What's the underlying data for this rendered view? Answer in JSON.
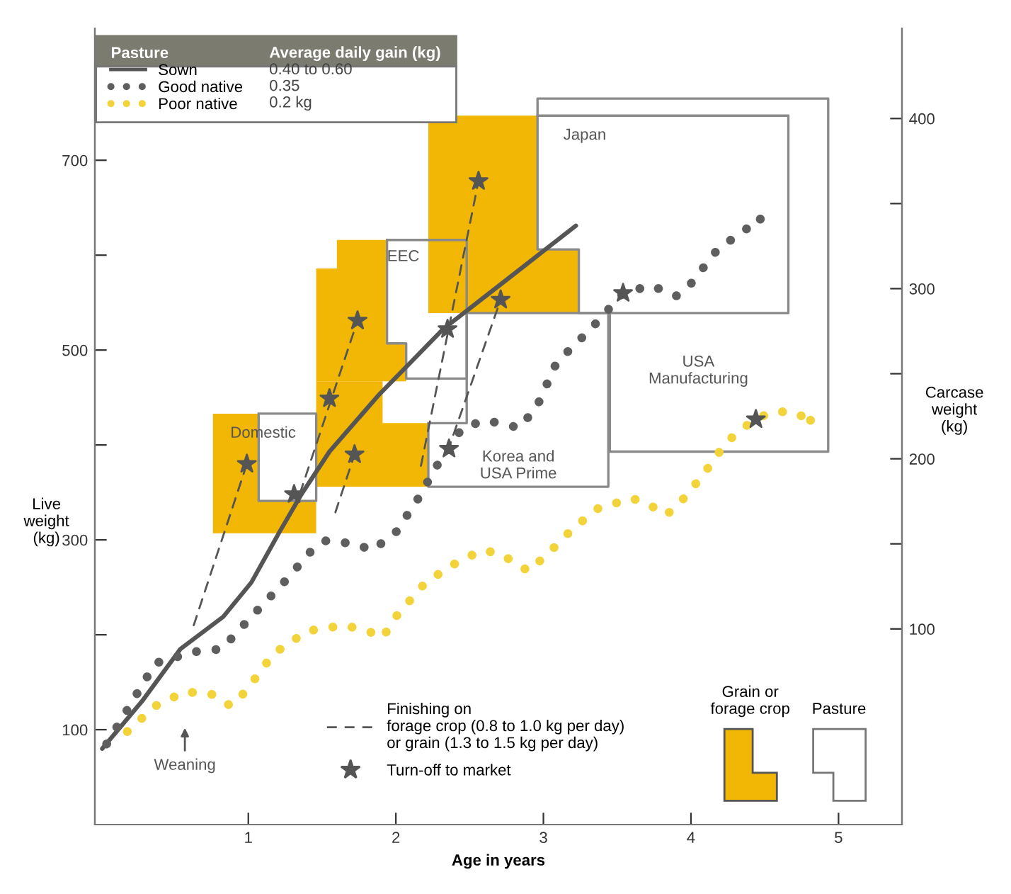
{
  "chart_data": {
    "type": "line",
    "xlabel": "Age in years",
    "ylabel": "Live\nweight\n(kg)",
    "y2label": "Carcase\nweight\n(kg)",
    "legend_title": "Pasture",
    "xlim": [
      -0.04,
      5.43
    ],
    "xticks": [
      1,
      2,
      3,
      4,
      5
    ],
    "ylim": [
      0,
      839
    ],
    "yticks": [
      100,
      {
        "value": 200,
        "label": null
      },
      300,
      {
        "value": 400,
        "label": null
      },
      500,
      {
        "value": 600,
        "label": null
      },
      700
    ],
    "y2lim": [
      -15,
      453
    ],
    "y2ticks": [
      100,
      {
        "value": 150,
        "label": null
      },
      200,
      {
        "value": 250,
        "label": null
      },
      300,
      {
        "value": 350,
        "label": null
      },
      400
    ],
    "grid": false,
    "legend": "top left",
    "annotations": [
      "Average daily gain (kg)",
      "0.40 to 0.60",
      "0.35",
      "0.2 kg",
      "Domestic",
      "EEC",
      "Japan",
      "Korea and\nUSA Prime",
      "USA\nManufacturing",
      "Weaning",
      "Grain or\nforage crop",
      "Pasture"
    ],
    "series": [
      {
        "name": "Sown",
        "color": "#555555",
        "line_style": "solid",
        "x": [
          0.01,
          0.28,
          0.54,
          0.83,
          1.02,
          1.21,
          1.36,
          1.55,
          1.88,
          2.32,
          2.75,
          3.22
        ],
        "values": [
          80,
          130,
          185,
          219,
          255,
          308,
          348,
          393,
          452,
          522,
          574,
          631
        ]
      },
      {
        "name": "Good native",
        "color": "#5e5e5e",
        "line_style": "dotted",
        "x": [
          0.04,
          0.37,
          0.63,
          0.82,
          1.02,
          1.24,
          1.43,
          1.52,
          1.72,
          1.84,
          2.0,
          2.17,
          2.26,
          2.45,
          2.61,
          2.84,
          2.96,
          3.09,
          3.32,
          3.54,
          3.73,
          3.9,
          3.99,
          4.18,
          4.47
        ],
        "values": [
          85,
          170,
          182,
          185,
          219,
          255,
          289,
          299,
          296,
          289,
          308,
          348,
          374,
          418,
          426,
          418,
          442,
          487,
          522,
          560,
          568,
          557,
          568,
          606,
          638
        ]
      },
      {
        "name": "Poor native",
        "color": "#f3d33a",
        "line_style": "dotted",
        "x": [
          0.18,
          0.37,
          0.57,
          0.76,
          0.88,
          0.98,
          1.17,
          1.4,
          1.65,
          1.81,
          1.91,
          2.0,
          2.2,
          2.39,
          2.58,
          2.7,
          2.9,
          3.06,
          3.2,
          3.37,
          3.6,
          3.73,
          3.83,
          3.92,
          4.08,
          4.24,
          4.43,
          4.56,
          4.69,
          4.81
        ],
        "values": [
          98,
          125,
          140,
          137,
          125,
          140,
          180,
          204,
          210,
          204,
          197,
          219,
          255,
          274,
          289,
          286,
          267,
          290,
          312,
          333,
          344,
          336,
          326,
          338,
          368,
          403,
          427,
          435,
          435,
          426
        ]
      },
      {
        "name": "Finishing on\nforage crop (0.8 to 1.0 kg per day)\nor grain (1.3 to 1.5 kg per day)",
        "color": "#555555",
        "line_style": "dashed",
        "x": [
          0.63,
          0.99
        ],
        "values": [
          210,
          380
        ]
      },
      {
        "color": "#555555",
        "line_style": "dashed",
        "x": [
          1.35,
          1.74
        ],
        "values": [
          349,
          531
        ]
      },
      {
        "color": "#555555",
        "line_style": "dashed",
        "x": [
          1.59,
          1.72
        ],
        "values": [
          329,
          390
        ]
      },
      {
        "color": "#555555",
        "line_style": "dashed",
        "x": [
          2.17,
          2.56
        ],
        "values": [
          378,
          678
        ]
      },
      {
        "color": "#555555",
        "line_style": "dashed",
        "x": [
          2.35,
          2.71
        ],
        "values": [
          393,
          553
        ]
      },
      {
        "name": "Turn-off to market",
        "type": "scatter",
        "color": "#555555",
        "marker": "star",
        "x": [
          0.99,
          1.31,
          1.55,
          1.72,
          1.74,
          2.35,
          2.36,
          2.56,
          2.71,
          3.54,
          4.44
        ],
        "values": [
          380,
          348,
          449,
          390,
          531,
          522,
          396,
          678,
          553,
          560,
          427
        ]
      }
    ]
  }
}
